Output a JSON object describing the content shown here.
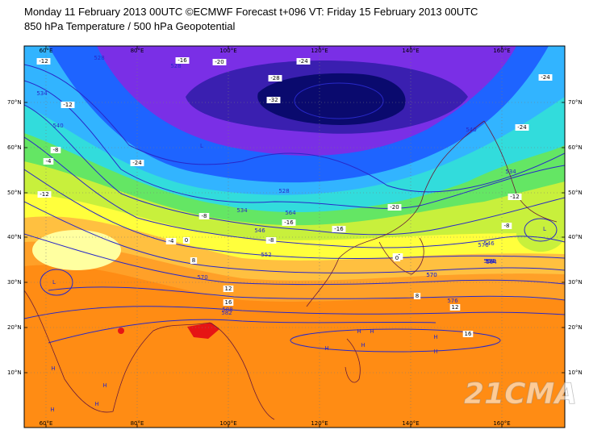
{
  "header": {
    "line1": "Monday 11 February 2013 00UTC ©ECMWF Forecast t+096 VT: Friday 15 February 2013 00UTC",
    "line2": "850 hPa Temperature / 500 hPa Geopotential"
  },
  "axes": {
    "lon_labels": [
      "60°E",
      "80°E",
      "100°E",
      "120°E",
      "140°E",
      "160°E"
    ],
    "lat_labels": [
      "70°N",
      "60°N",
      "50°N",
      "40°N",
      "30°N",
      "20°N",
      "10°N"
    ]
  },
  "temperature_labels": [
    "-12",
    "-16",
    "-20",
    "-24",
    "-28",
    "-32",
    "-24",
    "-12",
    "-8",
    "-4",
    "-24",
    "-24",
    "-12",
    "-16",
    "-20",
    "-16",
    "-8",
    "-8",
    "-4",
    "0",
    "-4",
    "8",
    "12",
    "16",
    "12",
    "16",
    "8",
    "0",
    "-8",
    "-12"
  ],
  "geopotential_labels": [
    "528",
    "534",
    "540",
    "528",
    "552",
    "564",
    "558",
    "546",
    "570",
    "576",
    "582",
    "570",
    "576",
    "588",
    "540",
    "534",
    "546",
    "558",
    "528",
    "534",
    "558",
    "564",
    "570"
  ],
  "pressure_centres": [
    "L",
    "L",
    "L",
    "H",
    "H",
    "H",
    "H",
    "H",
    "H",
    "H",
    "H",
    "H",
    "H"
  ],
  "watermark": "21CMA",
  "colors": {
    "deep_cold": "#0a0a6e",
    "very_cold": "#3a1fb0",
    "violet": "#7a2fe6",
    "blue": "#1e64ff",
    "light_blue": "#32b4ff",
    "cyan": "#32dcdc",
    "green": "#64e664",
    "yellow_green": "#c8f03c",
    "yellow": "#ffff3c",
    "pale_yellow": "#ffffa0",
    "orange": "#ffa028",
    "dark_orange": "#ff8c14",
    "red": "#e61414",
    "contour": "#2828c8"
  }
}
